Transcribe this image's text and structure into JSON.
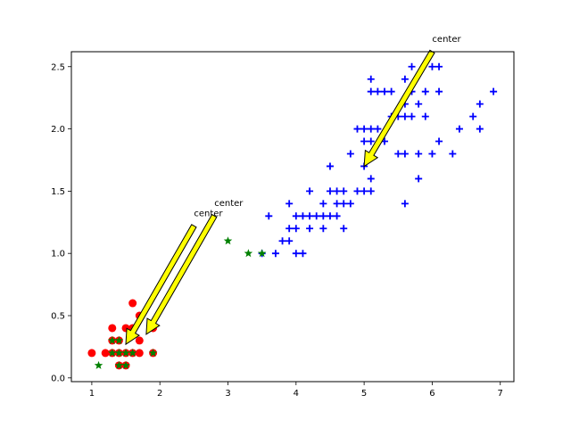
{
  "chart_data": {
    "type": "scatter",
    "title": "",
    "xlabel": "",
    "ylabel": "",
    "xlim": [
      0.7,
      7.2
    ],
    "ylim": [
      -0.03,
      2.62
    ],
    "xticks": [
      1,
      2,
      3,
      4,
      5,
      6,
      7
    ],
    "yticks": [
      0.0,
      0.5,
      1.0,
      1.5,
      2.0,
      2.5
    ],
    "xtick_labels": [
      "1",
      "2",
      "3",
      "4",
      "5",
      "6",
      "7"
    ],
    "ytick_labels": [
      "0.0",
      "0.5",
      "1.0",
      "1.5",
      "2.0",
      "2.5"
    ],
    "grid": false,
    "legend": null,
    "series": [
      {
        "marker": "circle",
        "color": "#ff0000",
        "points": [
          [
            1.0,
            0.2
          ],
          [
            1.2,
            0.2
          ],
          [
            1.3,
            0.2
          ],
          [
            1.3,
            0.3
          ],
          [
            1.3,
            0.4
          ],
          [
            1.4,
            0.1
          ],
          [
            1.4,
            0.2
          ],
          [
            1.4,
            0.3
          ],
          [
            1.5,
            0.1
          ],
          [
            1.5,
            0.2
          ],
          [
            1.5,
            0.4
          ],
          [
            1.6,
            0.2
          ],
          [
            1.6,
            0.4
          ],
          [
            1.6,
            0.6
          ],
          [
            1.7,
            0.2
          ],
          [
            1.7,
            0.3
          ],
          [
            1.7,
            0.5
          ],
          [
            1.9,
            0.2
          ],
          [
            1.9,
            0.4
          ]
        ]
      },
      {
        "marker": "plus",
        "color": "#0000ff",
        "points": [
          [
            3.5,
            1.0
          ],
          [
            3.6,
            1.3
          ],
          [
            3.7,
            1.0
          ],
          [
            3.8,
            1.1
          ],
          [
            3.9,
            1.1
          ],
          [
            3.9,
            1.2
          ],
          [
            3.9,
            1.4
          ],
          [
            4.0,
            1.0
          ],
          [
            4.0,
            1.2
          ],
          [
            4.0,
            1.3
          ],
          [
            4.1,
            1.0
          ],
          [
            4.1,
            1.3
          ],
          [
            4.2,
            1.2
          ],
          [
            4.2,
            1.3
          ],
          [
            4.2,
            1.5
          ],
          [
            4.3,
            1.3
          ],
          [
            4.4,
            1.2
          ],
          [
            4.4,
            1.3
          ],
          [
            4.4,
            1.4
          ],
          [
            4.5,
            1.3
          ],
          [
            4.5,
            1.5
          ],
          [
            4.5,
            1.7
          ],
          [
            4.6,
            1.3
          ],
          [
            4.6,
            1.4
          ],
          [
            4.6,
            1.5
          ],
          [
            4.7,
            1.2
          ],
          [
            4.7,
            1.4
          ],
          [
            4.7,
            1.5
          ],
          [
            4.8,
            1.4
          ],
          [
            4.8,
            1.8
          ],
          [
            4.9,
            1.5
          ],
          [
            4.9,
            2.0
          ],
          [
            5.0,
            1.5
          ],
          [
            5.0,
            1.7
          ],
          [
            5.0,
            1.9
          ],
          [
            5.0,
            2.0
          ],
          [
            5.1,
            1.5
          ],
          [
            5.1,
            1.6
          ],
          [
            5.1,
            1.8
          ],
          [
            5.1,
            1.9
          ],
          [
            5.1,
            2.0
          ],
          [
            5.1,
            2.3
          ],
          [
            5.1,
            2.4
          ],
          [
            5.2,
            2.0
          ],
          [
            5.2,
            2.3
          ],
          [
            5.3,
            1.9
          ],
          [
            5.3,
            2.3
          ],
          [
            5.4,
            2.1
          ],
          [
            5.4,
            2.3
          ],
          [
            5.5,
            1.8
          ],
          [
            5.5,
            2.1
          ],
          [
            5.6,
            1.4
          ],
          [
            5.6,
            1.8
          ],
          [
            5.6,
            2.1
          ],
          [
            5.6,
            2.2
          ],
          [
            5.6,
            2.4
          ],
          [
            5.7,
            2.1
          ],
          [
            5.7,
            2.3
          ],
          [
            5.7,
            2.5
          ],
          [
            5.8,
            1.6
          ],
          [
            5.8,
            1.8
          ],
          [
            5.8,
            2.2
          ],
          [
            5.9,
            2.1
          ],
          [
            5.9,
            2.3
          ],
          [
            6.0,
            1.8
          ],
          [
            6.0,
            2.5
          ],
          [
            6.1,
            1.9
          ],
          [
            6.1,
            2.3
          ],
          [
            6.1,
            2.5
          ],
          [
            6.3,
            1.8
          ],
          [
            6.4,
            2.0
          ],
          [
            6.6,
            2.1
          ],
          [
            6.7,
            2.0
          ],
          [
            6.7,
            2.2
          ],
          [
            6.9,
            2.3
          ]
        ]
      },
      {
        "marker": "star",
        "color": "#008000",
        "points": [
          [
            1.1,
            0.1
          ],
          [
            1.3,
            0.2
          ],
          [
            1.3,
            0.3
          ],
          [
            1.4,
            0.1
          ],
          [
            1.4,
            0.2
          ],
          [
            1.4,
            0.3
          ],
          [
            1.5,
            0.1
          ],
          [
            1.5,
            0.2
          ],
          [
            1.6,
            0.2
          ],
          [
            1.9,
            0.2
          ],
          [
            3.0,
            1.1
          ],
          [
            3.3,
            1.0
          ],
          [
            3.5,
            1.0
          ]
        ]
      }
    ],
    "annotations": [
      {
        "text": "center",
        "point": [
          1.5,
          0.27
        ],
        "text_pos": [
          2.5,
          1.3
        ]
      },
      {
        "text": "center",
        "point": [
          1.8,
          0.35
        ],
        "text_pos": [
          2.8,
          1.38
        ]
      },
      {
        "text": "center",
        "point": [
          5.0,
          1.7
        ],
        "text_pos": [
          6.0,
          2.7
        ]
      }
    ],
    "arrow_color": "#ffff00"
  }
}
